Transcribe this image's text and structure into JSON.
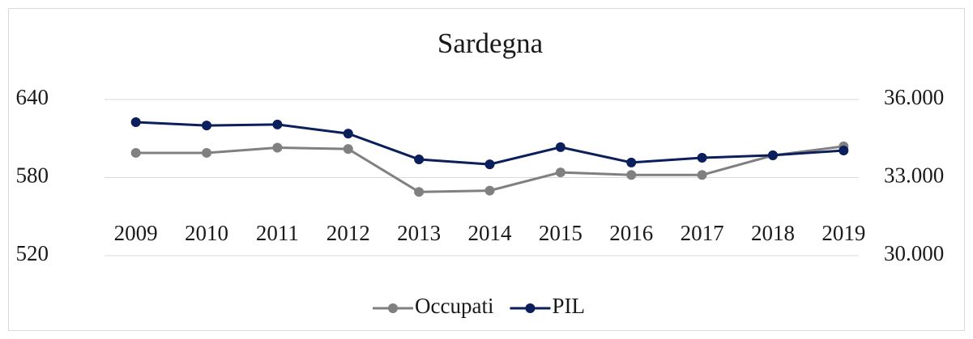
{
  "chart_data": {
    "type": "line",
    "title": "Sardegna",
    "categories": [
      "2009",
      "2010",
      "2011",
      "2012",
      "2013",
      "2014",
      "2015",
      "2016",
      "2017",
      "2018",
      "2019"
    ],
    "series": [
      {
        "name": "Occupati",
        "color": "#808080",
        "values": [
          599,
          599,
          603,
          602,
          569,
          570,
          584,
          582,
          582,
          597,
          604
        ]
      },
      {
        "name": "PIL",
        "color": "#0a1f5c",
        "axis": "y2",
        "values": [
          35130,
          35000,
          35040,
          34690,
          33700,
          33510,
          34170,
          33580,
          33760,
          33860,
          34040
        ]
      }
    ],
    "ylim": [
      520,
      640
    ],
    "yticks": [
      520,
      580,
      640
    ],
    "y2lim": [
      30000,
      36000
    ],
    "y2ticks": [
      {
        "value": 30000,
        "label": "30.000"
      },
      {
        "value": 33000,
        "label": "33.000"
      },
      {
        "value": 36000,
        "label": "36.000"
      }
    ],
    "grid": true,
    "legend": "bottom"
  }
}
